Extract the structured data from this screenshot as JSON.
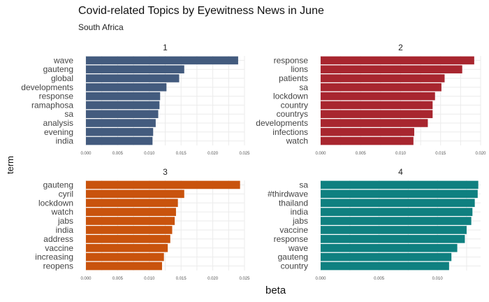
{
  "header": {
    "title": "Covid-related Topics by Eyewitness News in June",
    "subtitle": "South Africa"
  },
  "axes": {
    "xlabel": "beta",
    "ylabel": "term"
  },
  "chart_data": [
    {
      "type": "bar",
      "orientation": "horizontal",
      "facet": "1",
      "color": "#435b7e",
      "categories": [
        "wave",
        "gauteng",
        "global",
        "developments",
        "response",
        "ramaphosa",
        "sa",
        "analysis",
        "evening",
        "india"
      ],
      "values": [
        0.024,
        0.0155,
        0.0147,
        0.0127,
        0.0117,
        0.0116,
        0.0114,
        0.011,
        0.0106,
        0.0105
      ],
      "xticks": [
        "0.000",
        "0.005",
        "0.010",
        "0.015",
        "0.020",
        "0.025"
      ],
      "xlim": [
        0,
        0.025
      ]
    },
    {
      "type": "bar",
      "orientation": "horizontal",
      "facet": "2",
      "color": "#a8262f",
      "categories": [
        "response",
        "lions",
        "patients",
        "sa",
        "lockdown",
        "country",
        "countrys",
        "developments",
        "infections",
        "watch"
      ],
      "values": [
        0.0192,
        0.0177,
        0.0155,
        0.0151,
        0.0143,
        0.014,
        0.014,
        0.0134,
        0.0117,
        0.0116
      ],
      "xticks": [
        "0.000",
        "0.005",
        "0.010",
        "0.015",
        "0.020"
      ],
      "xlim": [
        0,
        0.02
      ]
    },
    {
      "type": "bar",
      "orientation": "horizontal",
      "facet": "3",
      "color": "#c9530d",
      "categories": [
        "gauteng",
        "cyril",
        "lockdown",
        "watch",
        "jabs",
        "india",
        "address",
        "vaccine",
        "increasing",
        "reopens"
      ],
      "values": [
        0.0243,
        0.0155,
        0.0145,
        0.0142,
        0.014,
        0.0136,
        0.0133,
        0.0129,
        0.0123,
        0.012
      ],
      "xticks": [
        "0.000",
        "0.005",
        "0.010",
        "0.015",
        "0.020",
        "0.025"
      ],
      "xlim": [
        0,
        0.025
      ]
    },
    {
      "type": "bar",
      "orientation": "horizontal",
      "facet": "4",
      "color": "#0f8080",
      "categories": [
        "sa",
        "#thirdwave",
        "thailand",
        "india",
        "jabs",
        "vaccine",
        "response",
        "wave",
        "gauteng",
        "country"
      ],
      "values": [
        0.0135,
        0.01345,
        0.0132,
        0.013,
        0.0129,
        0.0125,
        0.01235,
        0.0117,
        0.0112,
        0.011
      ],
      "xticks": [
        "0.000",
        "0.005",
        "0.010"
      ],
      "xlim": [
        0,
        0.0137
      ]
    }
  ]
}
